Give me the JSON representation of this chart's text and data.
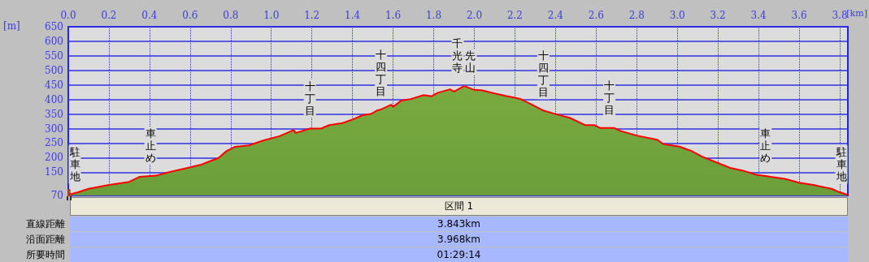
{
  "chart_data": {
    "type": "area",
    "xlabel": "[km]",
    "ylabel": "[m]",
    "x": [
      0,
      0.048,
      0.1,
      0.2,
      0.3,
      0.35,
      0.405,
      0.43,
      0.5,
      0.6,
      0.65,
      0.74,
      0.78,
      0.82,
      0.89,
      0.96,
      1.04,
      1.11,
      1.12,
      1.19,
      1.245,
      1.285,
      1.35,
      1.4,
      1.45,
      1.49,
      1.52,
      1.54,
      1.56,
      1.59,
      1.6,
      1.64,
      1.685,
      1.75,
      1.79,
      1.82,
      1.88,
      1.9,
      1.95,
      2.0,
      2.035,
      2.105,
      2.15,
      2.2,
      2.23,
      2.285,
      2.34,
      2.4,
      2.47,
      2.545,
      2.59,
      2.62,
      2.665,
      2.69,
      2.72,
      2.8,
      2.9,
      2.93,
      3.01,
      3.07,
      3.12,
      3.205,
      3.26,
      3.32,
      3.39,
      3.435,
      3.46,
      3.53,
      3.6,
      3.67,
      3.76,
      3.8,
      3.84
    ],
    "series": [
      {
        "color": "#6b9e3a",
        "values": [
          72,
          81,
          93,
          106,
          117,
          134,
          137,
          138,
          151,
          167,
          175,
          199,
          223,
          237,
          242,
          259,
          274,
          295,
          285,
          300,
          300,
          312,
          319,
          331,
          346,
          350,
          362,
          366,
          372,
          382,
          375,
          396,
          401,
          415,
          411,
          423,
          435,
          427,
          446,
          433,
          432,
          420,
          413,
          406,
          401,
          382,
          362,
          350,
          337,
          312,
          312,
          302,
          302,
          302,
          292,
          276,
          262,
          247,
          238,
          223,
          204,
          180,
          165,
          156,
          141,
          137,
          134,
          127,
          114,
          106,
          93,
          81,
          72
        ]
      }
    ],
    "xlim": [
      0,
      3.84
    ],
    "xticks": [
      {
        "value": 0,
        "label": "0.0"
      },
      0.2,
      0.4,
      0.6,
      0.8,
      {
        "value": 1,
        "label": "1.0"
      },
      1.2,
      1.4,
      1.6,
      1.8,
      {
        "value": 2,
        "label": "2.0"
      },
      2.2,
      2.4,
      2.6,
      2.8,
      {
        "value": 3,
        "label": "3.0"
      },
      3.2,
      3.4,
      3.6,
      3.8
    ],
    "ylim": [
      70,
      650
    ],
    "yticks": [
      70,
      150,
      200,
      250,
      300,
      350,
      400,
      450,
      500,
      550,
      600,
      650
    ],
    "grid": true,
    "annotations": [
      {
        "text": "駐車地",
        "x": 0,
        "y": 72
      },
      {
        "text": "車止め",
        "x": 0.405,
        "y": 137
      },
      {
        "text": "十丁目",
        "x": 1.19,
        "y": 300
      },
      {
        "text": "十四丁目",
        "x": 1.54,
        "y": 366
      },
      {
        "text": "千光寺",
        "x": 1.95,
        "y": 446
      },
      {
        "text": "先山",
        "x": 1.95,
        "y": 446
      },
      {
        "text": "十四丁目",
        "x": 2.34,
        "y": 362
      },
      {
        "text": "十丁目",
        "x": 2.665,
        "y": 302
      },
      {
        "text": "車止め",
        "x": 3.435,
        "y": 137
      },
      {
        "text": "駐車地",
        "x": 3.84,
        "y": 72
      },
      "区間 1",
      "直線距離",
      "3.843km",
      "沿面距離",
      "3.968km",
      "所要時間",
      "01:29:14"
    ]
  }
}
